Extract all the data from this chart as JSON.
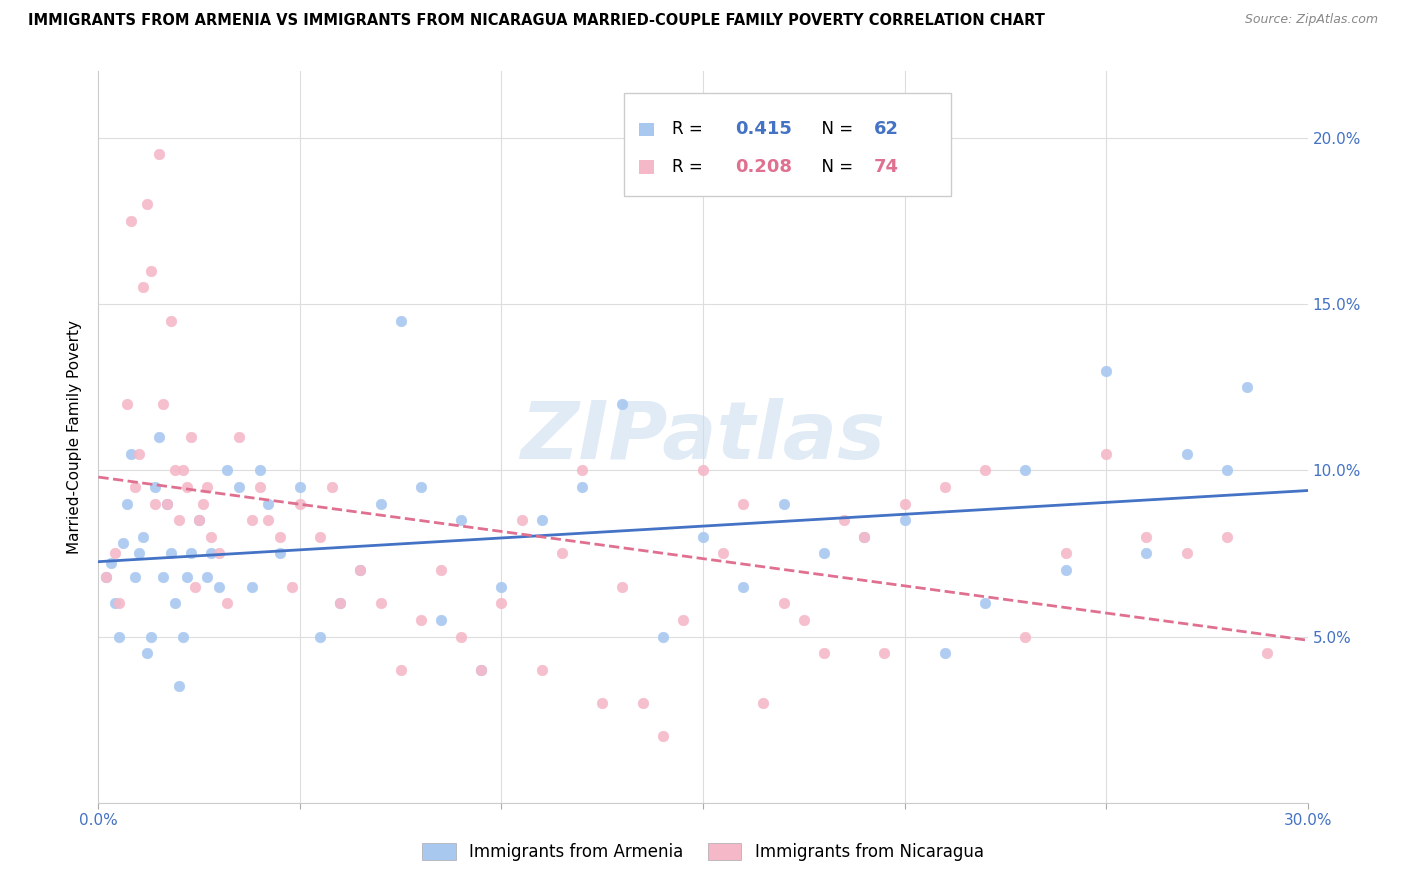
{
  "title": "IMMIGRANTS FROM ARMENIA VS IMMIGRANTS FROM NICARAGUA MARRIED-COUPLE FAMILY POVERTY CORRELATION CHART",
  "source": "Source: ZipAtlas.com",
  "ylabel": "Married-Couple Family Poverty",
  "xlim": [
    0.0,
    0.3
  ],
  "ylim": [
    0.0,
    0.22
  ],
  "armenia_color": "#A8C8F0",
  "nicaragua_color": "#F5B8C8",
  "armenia_line_color": "#4472C4",
  "nicaragua_line_color": "#E07090",
  "legend_R_armenia": "0.415",
  "legend_N_armenia": "62",
  "legend_R_nicaragua": "0.208",
  "legend_N_nicaragua": "74",
  "watermark": "ZIPatlas",
  "armenia_x": [
    0.002,
    0.003,
    0.004,
    0.005,
    0.006,
    0.007,
    0.008,
    0.009,
    0.01,
    0.011,
    0.012,
    0.013,
    0.014,
    0.015,
    0.016,
    0.017,
    0.018,
    0.019,
    0.02,
    0.021,
    0.022,
    0.023,
    0.025,
    0.027,
    0.028,
    0.03,
    0.032,
    0.035,
    0.038,
    0.04,
    0.042,
    0.045,
    0.05,
    0.055,
    0.06,
    0.065,
    0.07,
    0.075,
    0.08,
    0.085,
    0.09,
    0.095,
    0.1,
    0.11,
    0.12,
    0.13,
    0.14,
    0.15,
    0.16,
    0.17,
    0.18,
    0.19,
    0.2,
    0.21,
    0.22,
    0.23,
    0.24,
    0.25,
    0.26,
    0.27,
    0.28,
    0.285
  ],
  "armenia_y": [
    0.068,
    0.072,
    0.06,
    0.05,
    0.078,
    0.09,
    0.105,
    0.068,
    0.075,
    0.08,
    0.045,
    0.05,
    0.095,
    0.11,
    0.068,
    0.09,
    0.075,
    0.06,
    0.035,
    0.05,
    0.068,
    0.075,
    0.085,
    0.068,
    0.075,
    0.065,
    0.1,
    0.095,
    0.065,
    0.1,
    0.09,
    0.075,
    0.095,
    0.05,
    0.06,
    0.07,
    0.09,
    0.145,
    0.095,
    0.055,
    0.085,
    0.04,
    0.065,
    0.085,
    0.095,
    0.12,
    0.05,
    0.08,
    0.065,
    0.09,
    0.075,
    0.08,
    0.085,
    0.045,
    0.06,
    0.1,
    0.07,
    0.13,
    0.075,
    0.105,
    0.1,
    0.125
  ],
  "nicaragua_x": [
    0.002,
    0.004,
    0.005,
    0.007,
    0.008,
    0.009,
    0.01,
    0.011,
    0.012,
    0.013,
    0.014,
    0.015,
    0.016,
    0.017,
    0.018,
    0.019,
    0.02,
    0.021,
    0.022,
    0.023,
    0.024,
    0.025,
    0.026,
    0.027,
    0.028,
    0.03,
    0.032,
    0.035,
    0.038,
    0.04,
    0.042,
    0.045,
    0.048,
    0.05,
    0.055,
    0.058,
    0.06,
    0.065,
    0.07,
    0.075,
    0.08,
    0.085,
    0.09,
    0.095,
    0.1,
    0.105,
    0.11,
    0.115,
    0.12,
    0.125,
    0.13,
    0.135,
    0.14,
    0.145,
    0.15,
    0.155,
    0.16,
    0.165,
    0.17,
    0.175,
    0.18,
    0.185,
    0.19,
    0.195,
    0.2,
    0.21,
    0.22,
    0.23,
    0.24,
    0.25,
    0.26,
    0.27,
    0.28,
    0.29
  ],
  "nicaragua_y": [
    0.068,
    0.075,
    0.06,
    0.12,
    0.175,
    0.095,
    0.105,
    0.155,
    0.18,
    0.16,
    0.09,
    0.195,
    0.12,
    0.09,
    0.145,
    0.1,
    0.085,
    0.1,
    0.095,
    0.11,
    0.065,
    0.085,
    0.09,
    0.095,
    0.08,
    0.075,
    0.06,
    0.11,
    0.085,
    0.095,
    0.085,
    0.08,
    0.065,
    0.09,
    0.08,
    0.095,
    0.06,
    0.07,
    0.06,
    0.04,
    0.055,
    0.07,
    0.05,
    0.04,
    0.06,
    0.085,
    0.04,
    0.075,
    0.1,
    0.03,
    0.065,
    0.03,
    0.02,
    0.055,
    0.1,
    0.075,
    0.09,
    0.03,
    0.06,
    0.055,
    0.045,
    0.085,
    0.08,
    0.045,
    0.09,
    0.095,
    0.1,
    0.05,
    0.075,
    0.105,
    0.08,
    0.075,
    0.08,
    0.045
  ]
}
